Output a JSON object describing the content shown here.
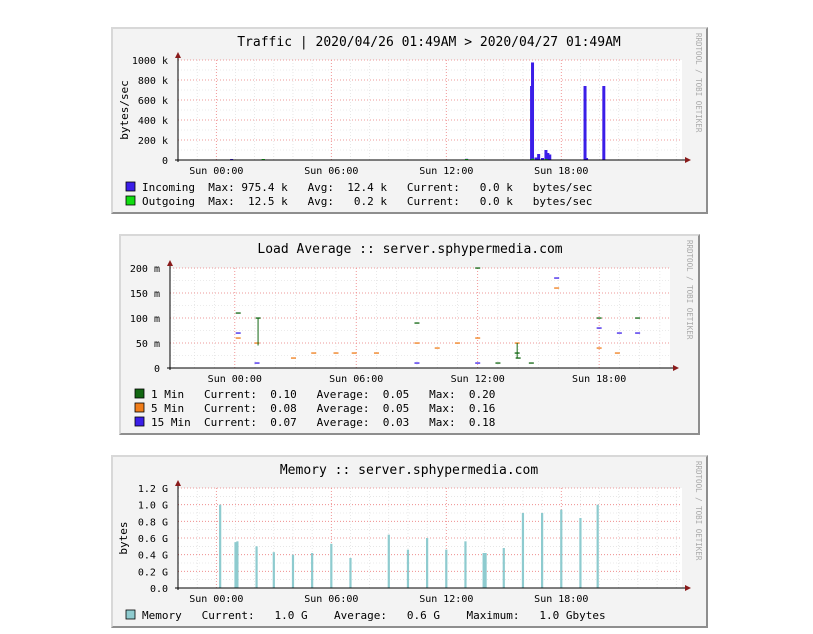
{
  "chart_data": [
    {
      "type": "bar",
      "title": "Traffic | 2020/04/26 01:49AM > 2020/04/27 01:49AM",
      "ylabel": "bytes/sec",
      "watermark": "RRDTOOL / TOBI OETIKER",
      "ylim": [
        0,
        1000000
      ],
      "yticks": [
        0,
        200000,
        400000,
        600000,
        800000,
        1000000
      ],
      "ytick_labels": [
        "0",
        "200 k",
        "400 k",
        "600 k",
        "800 k",
        "1000 k"
      ],
      "xlim": [
        -2.0,
        24.3
      ],
      "xticks": [
        0,
        6,
        12,
        18
      ],
      "xtick_labels": [
        "Sun 00:00",
        "Sun 06:00",
        "Sun 12:00",
        "Sun 18:00"
      ],
      "series": [
        {
          "name": "Incoming",
          "color": "#3b1ee8",
          "x": [
            0.8,
            2.45,
            13.06,
            16.45,
            16.5,
            16.68,
            16.82,
            17.02,
            17.2,
            17.3,
            17.4,
            19.24,
            19.32,
            20.22
          ],
          "values": [
            10000,
            8000,
            12000,
            740000,
            975400,
            25000,
            60000,
            20000,
            100000,
            70000,
            55000,
            740000,
            20000,
            740000
          ]
        },
        {
          "name": "Outgoing",
          "color": "#11dd11",
          "x": [
            2.45,
            13.06,
            16.5,
            17.2
          ],
          "values": [
            3000,
            4000,
            12500,
            3000
          ]
        }
      ],
      "legend": [
        {
          "name": "Incoming",
          "max": "975.4 k",
          "avg": "12.4 k",
          "current": "0.0 k",
          "unit": "bytes/sec"
        },
        {
          "name": "Outgoing",
          "max": "12.5 k",
          "avg": "0.2 k",
          "current": "0.0 k",
          "unit": "bytes/sec"
        }
      ]
    },
    {
      "type": "scatter",
      "title": "Load Average :: server.sphypermedia.com",
      "ylabel": "",
      "watermark": "RRDTOOL / TOBI OETIKER",
      "ylim": [
        0,
        0.2
      ],
      "yticks": [
        0,
        0.05,
        0.1,
        0.15,
        0.2
      ],
      "ytick_labels": [
        "0",
        "50 m",
        "100 m",
        "150 m",
        "200 m"
      ],
      "xlim": [
        -3.2,
        21.5
      ],
      "xticks": [
        0,
        6,
        12,
        18
      ],
      "xtick_labels": [
        "Sun 00:00",
        "Sun 06:00",
        "Sun 12:00",
        "Sun 18:00"
      ],
      "series": [
        {
          "name": "1 Min",
          "color": "#116611",
          "x": [
            0.17,
            1.15,
            9.0,
            12.0,
            13.0,
            13.95,
            14.0,
            14.65,
            18.0,
            19.9
          ],
          "values": [
            0.11,
            0.1,
            0.09,
            0.2,
            0.01,
            0.03,
            0.02,
            0.01,
            0.1,
            0.1
          ]
        },
        {
          "name": "5 Min",
          "color": "#f07d1a",
          "x": [
            0.17,
            1.1,
            2.9,
            3.9,
            5.0,
            5.9,
            7.0,
            9.0,
            10.0,
            11.0,
            12.0,
            13.95,
            15.9,
            18.0,
            18.9
          ],
          "values": [
            0.06,
            0.05,
            0.02,
            0.03,
            0.03,
            0.03,
            0.03,
            0.05,
            0.04,
            0.05,
            0.06,
            0.05,
            0.16,
            0.04,
            0.03
          ]
        },
        {
          "name": "15 Min",
          "color": "#3b1ee8",
          "x": [
            0.17,
            1.1,
            9.0,
            12.0,
            15.9,
            18.0,
            19.0,
            19.9
          ],
          "values": [
            0.07,
            0.01,
            0.01,
            0.01,
            0.18,
            0.08,
            0.07,
            0.07
          ]
        }
      ],
      "legend": [
        {
          "name": "1 Min",
          "current": "0.10",
          "avg": "0.05",
          "max": "0.20"
        },
        {
          "name": "5 Min",
          "current": "0.08",
          "avg": "0.05",
          "max": "0.16"
        },
        {
          "name": "15 Min",
          "current": "0.07",
          "avg": "0.03",
          "max": "0.18"
        }
      ]
    },
    {
      "type": "bar",
      "title": "Memory :: server.sphypermedia.com",
      "ylabel": "bytes",
      "watermark": "RRDTOOL / TOBI OETIKER",
      "ylim": [
        0,
        1.2
      ],
      "yticks": [
        0,
        0.2,
        0.4,
        0.6,
        0.8,
        1.0,
        1.2
      ],
      "ytick_labels": [
        "0.0",
        "0.2 G",
        "0.4 G",
        "0.6 G",
        "0.8 G",
        "1.0 G",
        "1.2 G"
      ],
      "xlim": [
        -2.0,
        24.3
      ],
      "xticks": [
        0,
        6,
        12,
        18
      ],
      "xtick_labels": [
        "Sun 00:00",
        "Sun 06:00",
        "Sun 12:00",
        "Sun 18:00"
      ],
      "series": [
        {
          "name": "Memory",
          "color": "#8ecbcf",
          "x": [
            0.2,
            1.0,
            1.1,
            2.1,
            3.0,
            4.0,
            5.0,
            6.0,
            7.0,
            9.0,
            10.0,
            11.0,
            12.0,
            13.0,
            13.95,
            14.05,
            15.0,
            16.0,
            17.0,
            18.0,
            19.0,
            19.9
          ],
          "values": [
            1.0,
            0.55,
            0.56,
            0.5,
            0.43,
            0.4,
            0.42,
            0.53,
            0.36,
            0.64,
            0.46,
            0.6,
            0.46,
            0.56,
            0.42,
            0.42,
            0.48,
            0.9,
            0.9,
            0.94,
            0.84,
            1.0
          ]
        }
      ],
      "legend": [
        {
          "name": "Memory",
          "current": "1.0 G",
          "avg": "0.6 G",
          "max": "1.0 Gbytes"
        }
      ]
    }
  ],
  "legend_lines": {
    "traffic": [
      "Incoming  Max: 975.4 k   Avg:  12.4 k   Current:   0.0 k   bytes/sec",
      "Outgoing  Max:  12.5 k   Avg:   0.2 k   Current:   0.0 k   bytes/sec"
    ],
    "load": [
      "1 Min   Current:  0.10   Average:  0.05   Max:  0.20",
      "5 Min   Current:  0.08   Average:  0.05   Max:  0.16",
      "15 Min  Current:  0.07   Average:  0.03   Max:  0.18"
    ],
    "memory": [
      "Memory   Current:   1.0 G    Average:   0.6 G    Maximum:   1.0 Gbytes"
    ]
  }
}
